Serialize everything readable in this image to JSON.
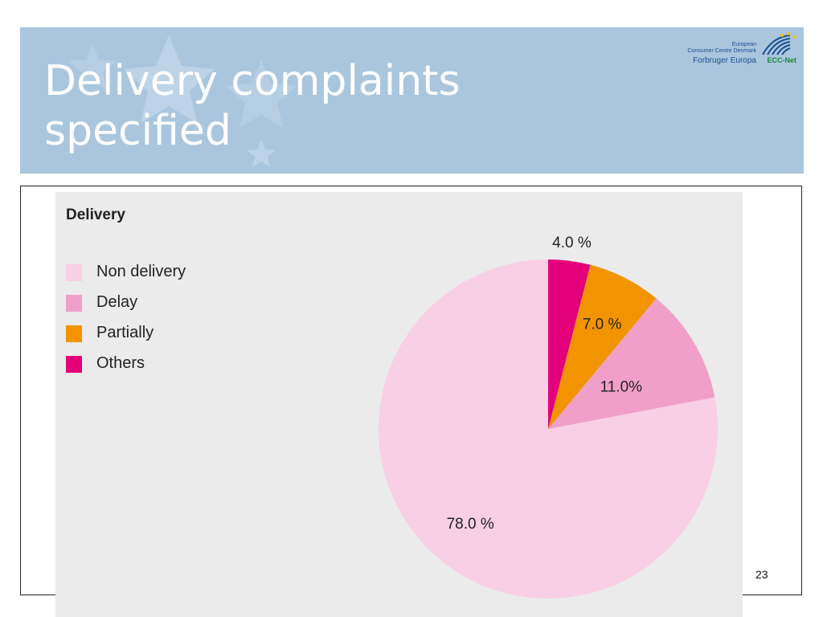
{
  "slide": {
    "title_line1": "Delivery complaints",
    "title_line2": "specified",
    "page_number": "23",
    "header_color": "#a9c6de"
  },
  "logo": {
    "line1": "European",
    "line2": "Consumer Centre Denmark",
    "line3": "Forbruger Europa",
    "net_label": "ECC-Net"
  },
  "chart_data": {
    "type": "pie",
    "title": "Delivery",
    "slices": [
      {
        "label": "Non delivery",
        "value": 78.0,
        "display": "78.0 %",
        "color": "#f8cfe4"
      },
      {
        "label": "Delay",
        "value": 11.0,
        "display": "11.0%",
        "color": "#f0a0c8"
      },
      {
        "label": "Partially",
        "value": 7.0,
        "display": "7.0 %",
        "color": "#f29400"
      },
      {
        "label": "Others",
        "value": 4.0,
        "display": "4.0 %",
        "color": "#e3007a"
      }
    ],
    "legend_placement": "top-left",
    "background": "#ebebeb"
  }
}
